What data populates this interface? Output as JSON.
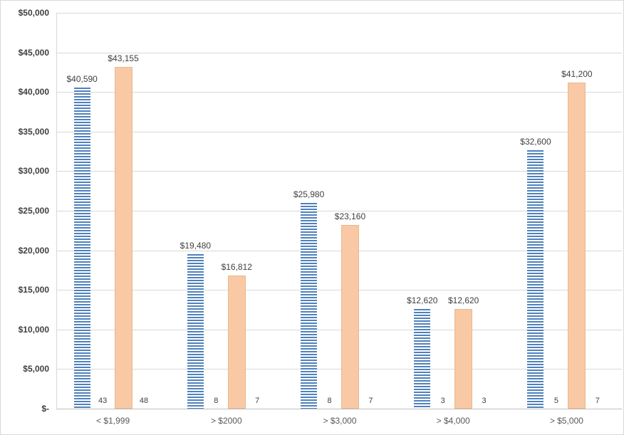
{
  "chart_data": {
    "type": "bar",
    "title": "",
    "categories": [
      "< $1,999",
      "> $2000",
      "> $3,000",
      "> $4,000",
      "> $5,000"
    ],
    "series": [
      {
        "name": "amount-blue",
        "style": "striped-blue",
        "values": [
          40590,
          19480,
          25980,
          12620,
          32600
        ],
        "labels": [
          "$40,590",
          "$19,480",
          "$25,980",
          "$12,620",
          "$32,600"
        ]
      },
      {
        "name": "count-blue",
        "style": "label-only",
        "values": [
          43,
          8,
          8,
          3,
          5
        ],
        "labels": [
          "43",
          "8",
          "8",
          "3",
          "5"
        ]
      },
      {
        "name": "amount-peach",
        "style": "solid-peach",
        "values": [
          43155,
          16812,
          23160,
          12620,
          41200
        ],
        "labels": [
          "$43,155",
          "$16,812",
          "$23,160",
          "$12,620",
          "$41,200"
        ]
      },
      {
        "name": "count-peach",
        "style": "label-only",
        "values": [
          48,
          7,
          7,
          3,
          7
        ],
        "labels": [
          "48",
          "7",
          "7",
          "3",
          "7"
        ]
      }
    ],
    "y_axis": {
      "min": 0,
      "max": 50000,
      "step": 5000,
      "tick_labels": [
        "$-",
        "$5,000",
        "$10,000",
        "$15,000",
        "$20,000",
        "$25,000",
        "$30,000",
        "$35,000",
        "$40,000",
        "$45,000",
        "$50,000"
      ]
    },
    "grid": true,
    "legend": "none",
    "colors": {
      "blue": "#4f81bd",
      "peach": "#f8c9a4",
      "peach_border": "#eab88e",
      "gridline": "#d9d9d9",
      "axis": "#bfbfbf",
      "axis_text": "#404040",
      "category_text": "#595959"
    }
  }
}
